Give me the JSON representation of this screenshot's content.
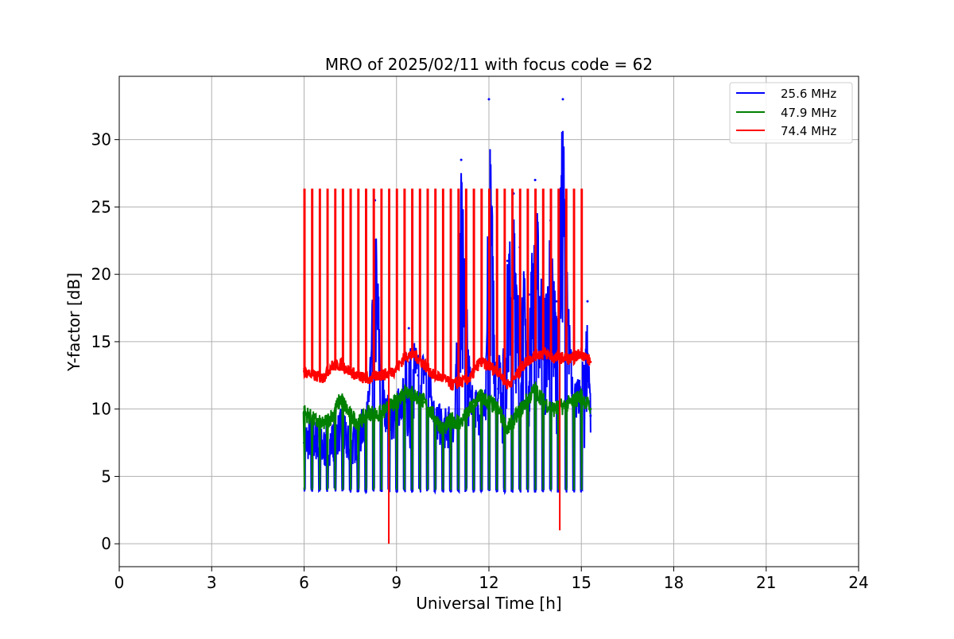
{
  "chart_data": {
    "type": "line",
    "title": "MRO of 2025/02/11 with focus code = 62",
    "xlabel": "Universal Time [h]",
    "ylabel": "Y-factor [dB]",
    "xlim": [
      0,
      24
    ],
    "ylim": [
      -1.7,
      34.7
    ],
    "xticks": [
      0,
      3,
      6,
      9,
      12,
      15,
      18,
      21,
      24
    ],
    "yticks": [
      0,
      5,
      10,
      15,
      20,
      25,
      30
    ],
    "grid": true,
    "legend_position": "top-right",
    "series": [
      {
        "name": "25.6 MHz",
        "color": "#0000ff",
        "x": [
          6.0,
          6.3,
          6.6,
          6.9,
          7.2,
          7.5,
          7.8,
          8.1,
          8.3,
          8.6,
          8.9,
          9.2,
          9.4,
          9.7,
          10.0,
          10.3,
          10.6,
          10.9,
          11.1,
          11.4,
          11.7,
          11.9,
          12.0,
          12.3,
          12.6,
          12.8,
          13.0,
          13.3,
          13.5,
          13.8,
          14.0,
          14.2,
          14.4,
          14.5,
          14.7,
          15.0,
          15.2,
          15.3
        ],
        "y": [
          7.5,
          8.0,
          7.0,
          7.5,
          8.5,
          7.0,
          8.0,
          10.0,
          25.5,
          10.0,
          9.0,
          11.0,
          16.0,
          12.5,
          13.0,
          9.0,
          8.5,
          9.0,
          28.5,
          11.0,
          9.5,
          10.0,
          33.0,
          11.5,
          21.0,
          26.0,
          22.0,
          18.5,
          27.0,
          18.0,
          24.0,
          18.0,
          33.0,
          25.0,
          11.0,
          10.5,
          18.0,
          9.5
        ]
      },
      {
        "name": "47.9 MHz",
        "color": "#008000",
        "x": [
          6.0,
          6.3,
          6.6,
          6.9,
          7.2,
          7.5,
          7.8,
          8.1,
          8.4,
          8.7,
          9.0,
          9.3,
          9.6,
          9.9,
          10.2,
          10.5,
          10.8,
          11.1,
          11.4,
          11.7,
          12.0,
          12.3,
          12.6,
          12.9,
          13.2,
          13.5,
          13.8,
          14.1,
          14.4,
          14.7,
          15.0,
          15.3
        ],
        "y": [
          9.8,
          9.2,
          8.8,
          9.5,
          10.8,
          9.5,
          9.0,
          9.8,
          9.5,
          10.0,
          10.5,
          11.5,
          11.0,
          10.5,
          9.5,
          8.5,
          9.2,
          9.0,
          10.0,
          11.0,
          10.5,
          10.0,
          8.5,
          9.5,
          10.5,
          11.5,
          10.5,
          10.0,
          10.2,
          10.5,
          11.0,
          10.0
        ]
      },
      {
        "name": "74.4 MHz",
        "color": "#ff0000",
        "x": [
          6.0,
          6.3,
          6.6,
          6.9,
          7.2,
          7.5,
          7.8,
          8.1,
          8.4,
          8.7,
          9.0,
          9.3,
          9.6,
          9.9,
          10.2,
          10.5,
          10.8,
          11.1,
          11.4,
          11.7,
          12.0,
          12.3,
          12.6,
          12.9,
          13.2,
          13.5,
          13.8,
          14.1,
          14.4,
          14.7,
          15.0,
          15.3
        ],
        "y": [
          12.8,
          12.5,
          12.3,
          13.2,
          13.3,
          12.8,
          12.4,
          12.2,
          12.5,
          12.6,
          13.0,
          14.0,
          14.0,
          13.3,
          12.5,
          12.3,
          11.8,
          12.0,
          12.3,
          13.5,
          13.2,
          12.8,
          11.8,
          12.5,
          13.5,
          14.0,
          14.2,
          13.8,
          13.8,
          13.7,
          14.2,
          13.5
        ]
      }
    ],
    "calibration_pulses": {
      "start": 6.0,
      "end": 15.0,
      "count": 37,
      "top_74_4": 26.3,
      "low_47_9": 4.0,
      "mid_47_9": 7.0,
      "dropout_times": [
        8.75,
        14.3
      ],
      "dropout_values": [
        0,
        1.0
      ]
    }
  }
}
